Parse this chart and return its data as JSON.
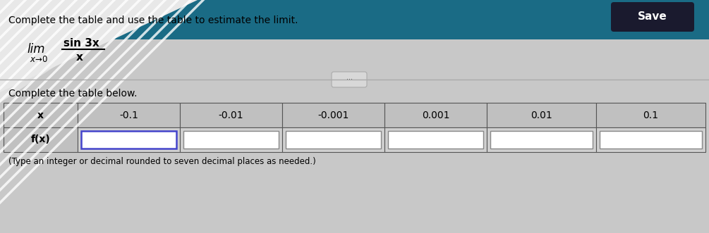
{
  "title_top": "Complete the table and use the table to estimate the limit.",
  "fraction_num": "sin 3x",
  "fraction_den": "x",
  "subtitle": "Complete the table below",
  "footnote": "(Type an integer or decimal rounded to seven decimal places as needed.)",
  "x_values": [
    "-0.1",
    "-0.01",
    "-0.001",
    "0.001",
    "0.01",
    "0.1"
  ],
  "row_label_x": "x",
  "row_label_fx": "f(x)",
  "bg_top_color": "#1a6b7a",
  "bg_bottom_color": "#c8c8c8",
  "white_panel_color": "#e8e8e8",
  "save_bg": "#1a1a1a",
  "save_text": "Save",
  "separator_line_color": "#999999",
  "active_cell_border": "#4444cc",
  "table_header_bg": "#c0c0c0",
  "table_cell_bg": "#d8d8d8",
  "dots_button_color": "#dddddd"
}
